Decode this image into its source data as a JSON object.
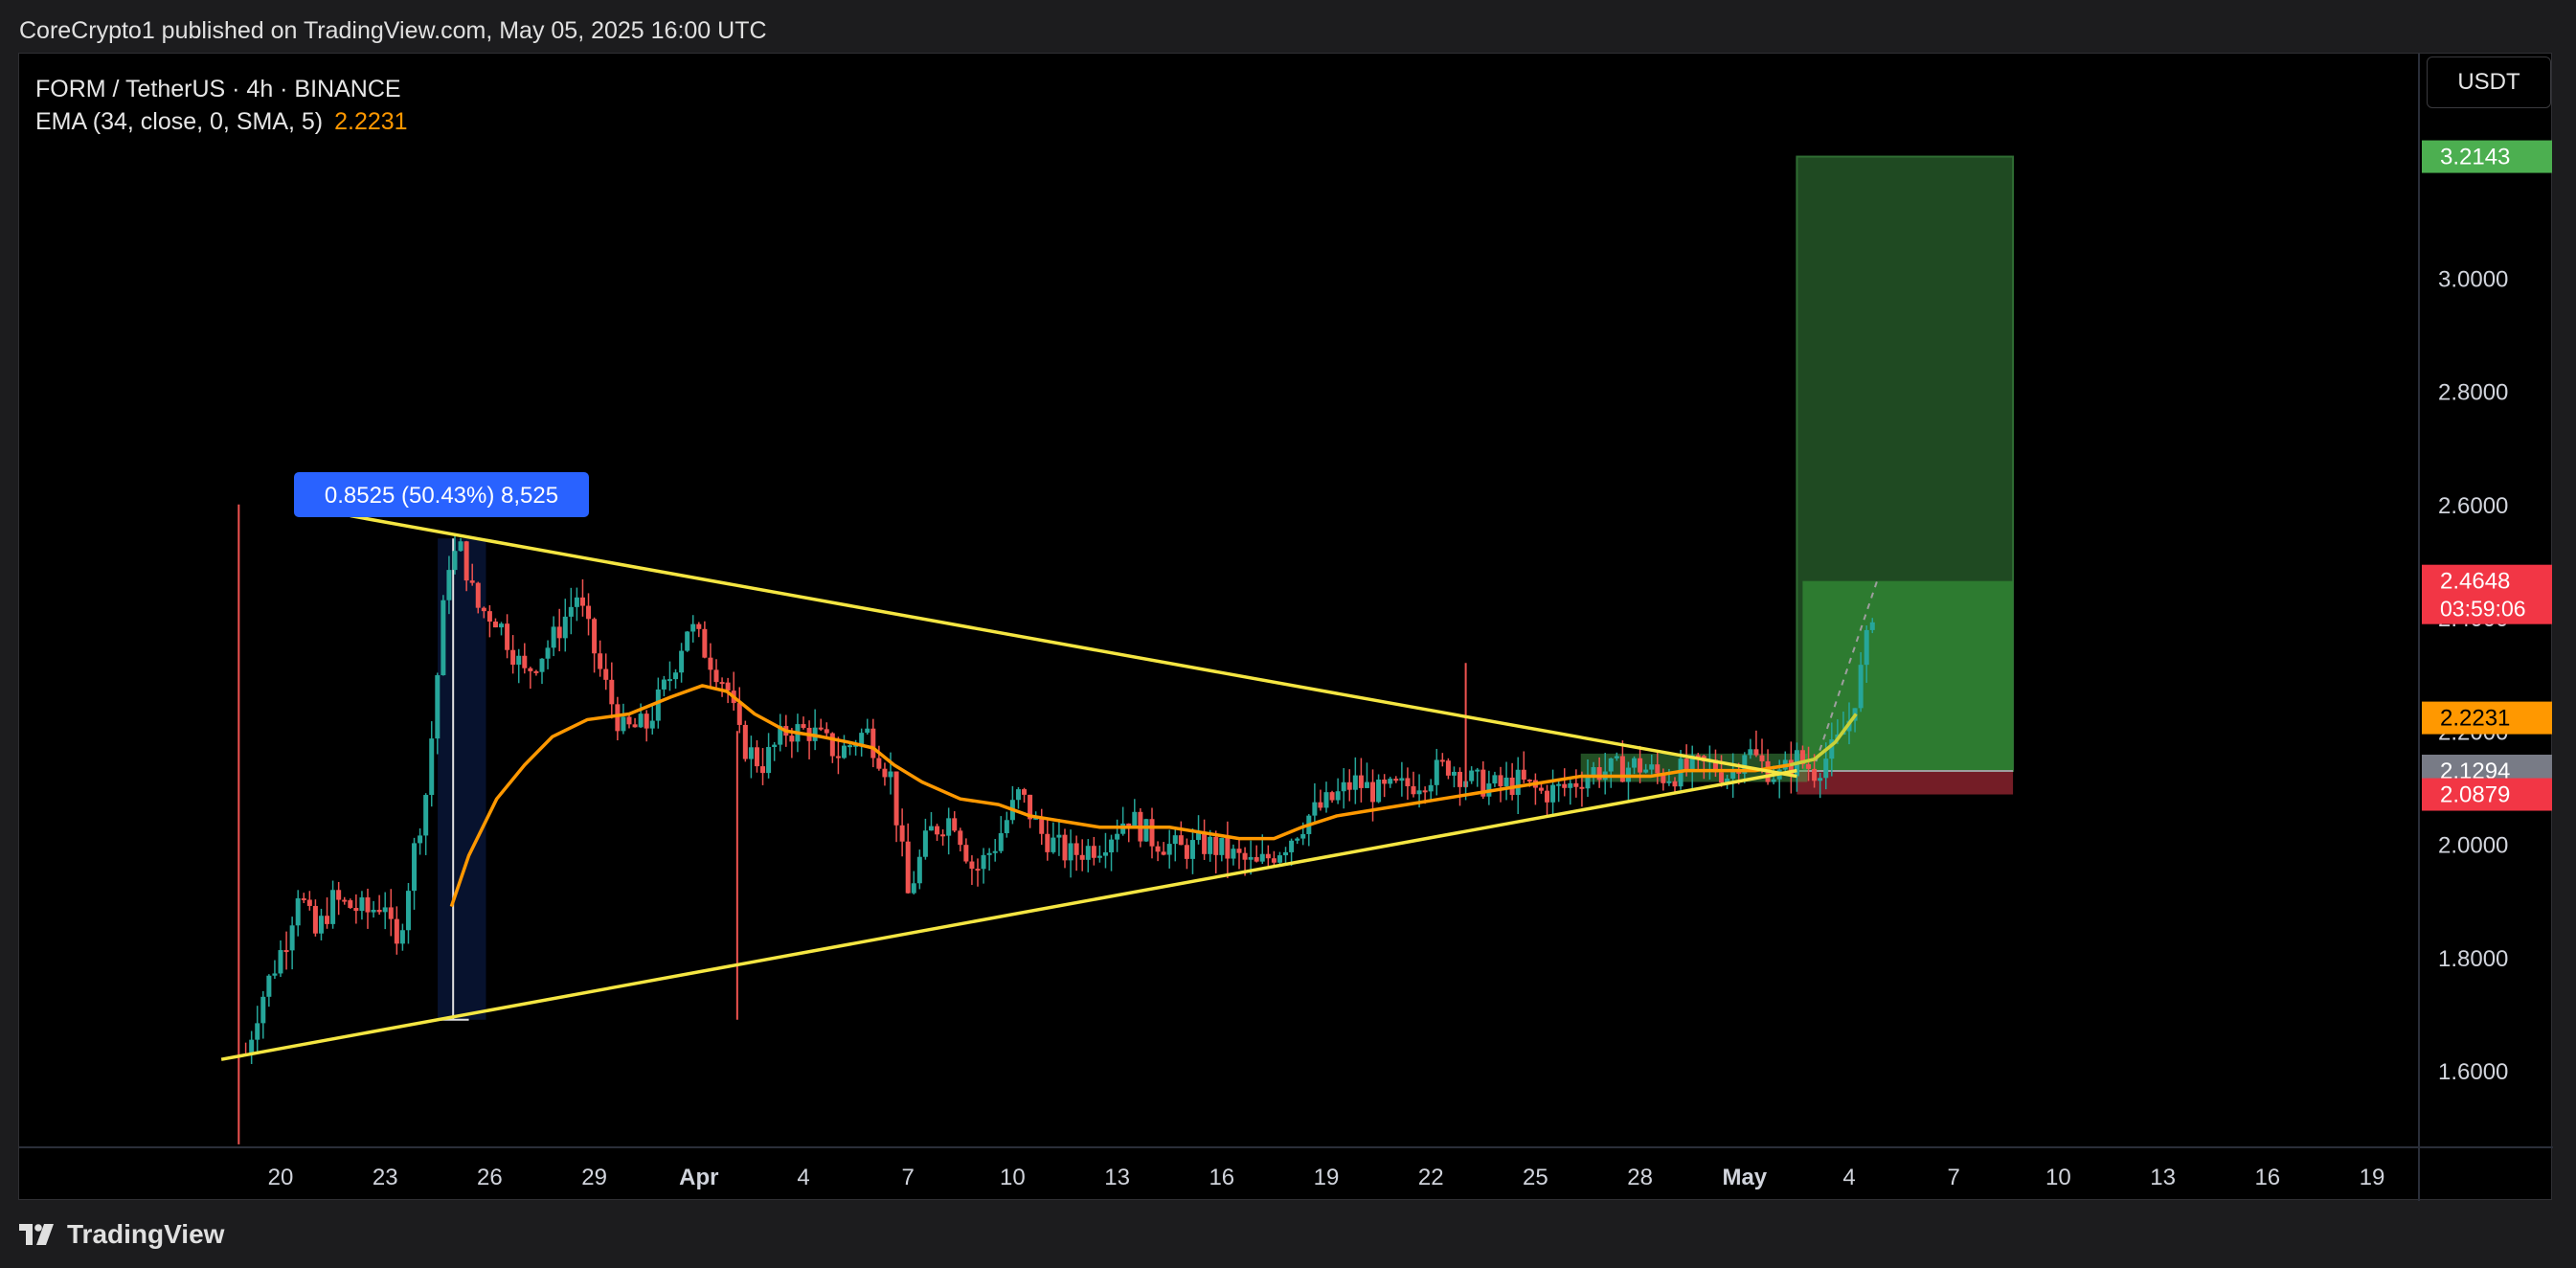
{
  "header": {
    "published": "CoreCrypto1 published on TradingView.com, May 05, 2025 16:00 UTC"
  },
  "legend": {
    "symbol": "FORM / TetherUS · 4h · BINANCE",
    "ema_label": "EMA (34, close, 0, SMA, 5)",
    "ema_value": "2.2231"
  },
  "currency_button": "USDT",
  "measure_label": "0.8525 (50.43%) 8,525",
  "footer": {
    "brand": "TradingView"
  },
  "colors": {
    "up": "#26a69a",
    "down": "#ef5350",
    "ema": "#ff9800",
    "trendline": "#f5e642",
    "target": "#4caf50",
    "stop": "#f23645",
    "measure": "#2962ff",
    "entry": "#787b86"
  },
  "chart_data": {
    "type": "candlestick",
    "interval": "4h",
    "price_axis": {
      "ticks": [
        "3.0000",
        "2.8000",
        "2.6000",
        "2.4000",
        "2.2000",
        "2.0000",
        "1.8000",
        "1.6000"
      ],
      "labels": [
        {
          "name": "target",
          "value": "3.2143",
          "color": "#4caf50"
        },
        {
          "name": "last-price",
          "value": "2.4648",
          "sub": "03:59:06",
          "color": "#f23645"
        },
        {
          "name": "ema",
          "value": "2.2231",
          "color": "#ff9800"
        },
        {
          "name": "entry",
          "value": "2.1294",
          "color": "#787b86"
        },
        {
          "name": "stop",
          "value": "2.0879",
          "color": "#f23645"
        }
      ]
    },
    "time_axis": {
      "ticks": [
        {
          "label": "20",
          "day": 20
        },
        {
          "label": "23",
          "day": 23
        },
        {
          "label": "26",
          "day": 26
        },
        {
          "label": "29",
          "day": 29
        },
        {
          "label": "Apr",
          "day": 32,
          "bold": true
        },
        {
          "label": "4",
          "day": 35
        },
        {
          "label": "7",
          "day": 38
        },
        {
          "label": "10",
          "day": 41
        },
        {
          "label": "13",
          "day": 44
        },
        {
          "label": "16",
          "day": 47
        },
        {
          "label": "19",
          "day": 50
        },
        {
          "label": "22",
          "day": 53
        },
        {
          "label": "25",
          "day": 56
        },
        {
          "label": "28",
          "day": 59
        },
        {
          "label": "May",
          "day": 62,
          "bold": true
        },
        {
          "label": "4",
          "day": 65
        },
        {
          "label": "7",
          "day": 68
        },
        {
          "label": "10",
          "day": 71
        },
        {
          "label": "13",
          "day": 74
        },
        {
          "label": "16",
          "day": 77
        },
        {
          "label": "19",
          "day": 80
        }
      ]
    },
    "price_path": [
      [
        19.0,
        1.63
      ],
      [
        19.4,
        1.72
      ],
      [
        20.2,
        1.84
      ],
      [
        20.5,
        1.92
      ],
      [
        21.0,
        1.84
      ],
      [
        21.5,
        1.9
      ],
      [
        22.5,
        1.88
      ],
      [
        23.0,
        1.9
      ],
      [
        23.3,
        1.8
      ],
      [
        23.8,
        1.98
      ],
      [
        24.2,
        2.1
      ],
      [
        24.5,
        2.3
      ],
      [
        24.8,
        2.5
      ],
      [
        25.2,
        2.52
      ],
      [
        25.6,
        2.42
      ],
      [
        26.2,
        2.4
      ],
      [
        27.0,
        2.3
      ],
      [
        27.8,
        2.36
      ],
      [
        28.5,
        2.44
      ],
      [
        29.2,
        2.3
      ],
      [
        29.8,
        2.2
      ],
      [
        30.5,
        2.21
      ],
      [
        31.2,
        2.3
      ],
      [
        31.7,
        2.39
      ],
      [
        32.2,
        2.34
      ],
      [
        32.8,
        2.28
      ],
      [
        33.2,
        2.18
      ],
      [
        33.8,
        2.14
      ],
      [
        34.5,
        2.2
      ],
      [
        35.2,
        2.2
      ],
      [
        36.0,
        2.16
      ],
      [
        36.8,
        2.2
      ],
      [
        37.5,
        2.12
      ],
      [
        38.0,
        1.91
      ],
      [
        38.6,
        2.02
      ],
      [
        39.3,
        2.05
      ],
      [
        39.9,
        1.95
      ],
      [
        40.5,
        2.0
      ],
      [
        41.2,
        2.09
      ],
      [
        41.8,
        2.02
      ],
      [
        42.6,
        1.98
      ],
      [
        43.5,
        2.0
      ],
      [
        44.3,
        2.05
      ],
      [
        45.0,
        2.01
      ],
      [
        45.8,
        1.99
      ],
      [
        46.6,
        2.0
      ],
      [
        47.3,
        1.98
      ],
      [
        48.0,
        1.96
      ],
      [
        48.8,
        2.0
      ],
      [
        49.5,
        2.05
      ],
      [
        50.2,
        2.08
      ],
      [
        50.8,
        2.11
      ],
      [
        51.5,
        2.09
      ],
      [
        52.2,
        2.1
      ],
      [
        52.9,
        2.12
      ],
      [
        53.5,
        2.14
      ],
      [
        54.2,
        2.11
      ],
      [
        54.9,
        2.1
      ],
      [
        55.5,
        2.11
      ],
      [
        56.2,
        2.09
      ],
      [
        56.9,
        2.1
      ],
      [
        57.6,
        2.13
      ],
      [
        58.2,
        2.13
      ],
      [
        58.9,
        2.14
      ],
      [
        59.6,
        2.12
      ],
      [
        60.3,
        2.13
      ],
      [
        61.0,
        2.14
      ],
      [
        61.6,
        2.12
      ],
      [
        62.0,
        2.17
      ],
      [
        62.5,
        2.14
      ],
      [
        63.0,
        2.12
      ],
      [
        63.5,
        2.15
      ],
      [
        64.0,
        2.13
      ],
      [
        64.6,
        2.17
      ],
      [
        65.0,
        2.22
      ],
      [
        65.4,
        2.32
      ],
      [
        65.8,
        2.46
      ]
    ],
    "ema_path": [
      [
        24.9,
        1.89
      ],
      [
        25.4,
        1.98
      ],
      [
        26.2,
        2.08
      ],
      [
        27.0,
        2.14
      ],
      [
        27.8,
        2.19
      ],
      [
        28.8,
        2.22
      ],
      [
        30.0,
        2.23
      ],
      [
        31.2,
        2.26
      ],
      [
        32.1,
        2.28
      ],
      [
        32.8,
        2.27
      ],
      [
        33.6,
        2.23
      ],
      [
        34.5,
        2.2
      ],
      [
        35.5,
        2.19
      ],
      [
        36.3,
        2.18
      ],
      [
        37.0,
        2.17
      ],
      [
        37.6,
        2.14
      ],
      [
        38.4,
        2.11
      ],
      [
        39.5,
        2.08
      ],
      [
        40.6,
        2.07
      ],
      [
        41.5,
        2.05
      ],
      [
        42.5,
        2.04
      ],
      [
        43.5,
        2.03
      ],
      [
        44.5,
        2.03
      ],
      [
        45.5,
        2.03
      ],
      [
        46.5,
        2.02
      ],
      [
        47.5,
        2.01
      ],
      [
        48.5,
        2.01
      ],
      [
        49.3,
        2.03
      ],
      [
        50.3,
        2.05
      ],
      [
        51.3,
        2.06
      ],
      [
        52.3,
        2.07
      ],
      [
        53.3,
        2.08
      ],
      [
        54.3,
        2.09
      ],
      [
        55.3,
        2.1
      ],
      [
        56.3,
        2.11
      ],
      [
        57.3,
        2.12
      ],
      [
        58.3,
        2.12
      ],
      [
        59.3,
        2.12
      ],
      [
        60.3,
        2.13
      ],
      [
        61.3,
        2.13
      ],
      [
        62.3,
        2.13
      ],
      [
        63.3,
        2.14
      ],
      [
        64.0,
        2.15
      ],
      [
        64.6,
        2.18
      ],
      [
        65.2,
        2.23
      ]
    ],
    "trendlines": [
      {
        "name": "upper-trendline",
        "from": [
          22.0,
          2.58
        ],
        "to": [
          63.5,
          2.12
        ]
      },
      {
        "name": "lower-trendline",
        "from": [
          18.3,
          1.62
        ],
        "to": [
          63.5,
          2.13
        ]
      }
    ],
    "spikes": [
      {
        "day": 18.8,
        "high": 2.6,
        "low": 1.47
      },
      {
        "day": 33.1,
        "high": 2.2,
        "low": 1.69
      },
      {
        "day": 54.0,
        "high": 2.32,
        "low": 2.1
      }
    ],
    "position": {
      "type": "long",
      "entry": 2.1294,
      "target": 3.2143,
      "stop": 2.0879,
      "current": 2.4648,
      "start_day": 63.5,
      "end_day": 69.7
    },
    "consolidation_box": {
      "from_day": 57.3,
      "to_day": 63.8,
      "low": 2.11,
      "high": 2.16
    },
    "measure": {
      "day_from": 24.7,
      "day_to": 25.7,
      "low": 1.69,
      "high": 2.54
    }
  }
}
